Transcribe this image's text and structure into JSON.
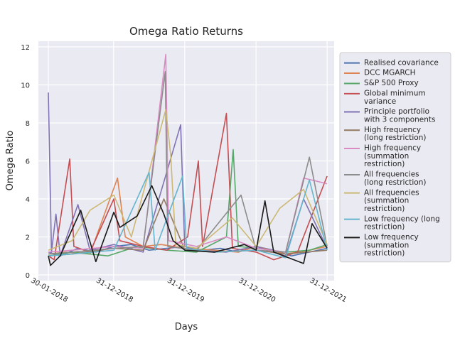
{
  "chart_data": {
    "type": "line",
    "title": "Omega Ratio Returns",
    "xlabel": "Days",
    "ylabel": "Omega Ratio",
    "x_tick_labels": [
      "30-01-2018",
      "31-12-2018",
      "31-12-2019",
      "31-12-2020",
      "31-12-2021"
    ],
    "x_tick_dates": [
      "2018-01-30",
      "2018-12-31",
      "2019-12-31",
      "2020-12-31",
      "2021-12-31"
    ],
    "xlim": [
      "2017-12-10",
      "2022-02-05"
    ],
    "ylim": [
      -0.3,
      12.3
    ],
    "y_ticks": [
      0,
      2,
      4,
      6,
      8,
      10,
      12
    ],
    "grid": true,
    "background": "#eaeaf2",
    "legend_position": "right, outside plot",
    "series": [
      {
        "name": "Realised covariance",
        "label_lines": [
          "Realised covariance"
        ],
        "color": "#4c72b0",
        "points": [
          [
            "2018-01-30",
            1.2
          ],
          [
            "2018-04-01",
            1.0
          ],
          [
            "2018-07-01",
            1.4
          ],
          [
            "2018-10-01",
            1.2
          ],
          [
            "2019-01-01",
            1.5
          ],
          [
            "2019-04-01",
            1.6
          ],
          [
            "2019-07-01",
            1.3
          ],
          [
            "2019-10-01",
            1.4
          ],
          [
            "2020-01-01",
            1.5
          ],
          [
            "2020-04-01",
            1.3
          ],
          [
            "2020-07-01",
            1.4
          ],
          [
            "2020-10-01",
            1.2
          ],
          [
            "2021-01-01",
            1.5
          ],
          [
            "2021-04-01",
            1.3
          ],
          [
            "2021-07-01",
            1.0
          ],
          [
            "2021-10-01",
            1.2
          ],
          [
            "2021-12-31",
            1.4
          ]
        ]
      },
      {
        "name": "DCC MGARCH",
        "label_lines": [
          "DCC MGARCH"
        ],
        "color": "#dd8452",
        "points": [
          [
            "2018-01-30",
            1.1
          ],
          [
            "2018-05-01",
            1.2
          ],
          [
            "2018-09-01",
            1.1
          ],
          [
            "2019-01-20",
            5.1
          ],
          [
            "2019-03-01",
            2.0
          ],
          [
            "2019-06-01",
            1.5
          ],
          [
            "2019-09-01",
            1.6
          ],
          [
            "2020-01-01",
            1.4
          ],
          [
            "2020-06-01",
            1.3
          ],
          [
            "2020-10-01",
            1.2
          ],
          [
            "2021-01-01",
            1.5
          ],
          [
            "2021-06-01",
            1.1
          ],
          [
            "2021-10-01",
            1.3
          ],
          [
            "2021-12-31",
            1.5
          ]
        ]
      },
      {
        "name": "S&P 500 Proxy",
        "label_lines": [
          "S&P 500 Proxy"
        ],
        "color": "#55a868",
        "points": [
          [
            "2018-01-30",
            1.0
          ],
          [
            "2018-06-01",
            1.2
          ],
          [
            "2018-12-01",
            1.0
          ],
          [
            "2019-05-01",
            1.5
          ],
          [
            "2019-10-01",
            1.3
          ],
          [
            "2020-03-01",
            1.2
          ],
          [
            "2020-08-01",
            2.0
          ],
          [
            "2020-09-05",
            6.6
          ],
          [
            "2020-10-01",
            1.5
          ],
          [
            "2021-01-01",
            1.4
          ],
          [
            "2021-06-01",
            1.2
          ],
          [
            "2021-10-01",
            1.3
          ],
          [
            "2021-12-31",
            1.6
          ]
        ]
      },
      {
        "name": "Global minimum variance",
        "label_lines": [
          "Global minimum",
          "variance"
        ],
        "color": "#c44e52",
        "points": [
          [
            "2018-01-30",
            1.0
          ],
          [
            "2018-03-01",
            0.8
          ],
          [
            "2018-05-20",
            6.1
          ],
          [
            "2018-06-10",
            1.5
          ],
          [
            "2018-09-01",
            1.2
          ],
          [
            "2019-01-01",
            4.0
          ],
          [
            "2019-02-01",
            1.8
          ],
          [
            "2019-06-01",
            1.5
          ],
          [
            "2019-10-01",
            1.3
          ],
          [
            "2020-01-15",
            2.0
          ],
          [
            "2020-03-10",
            6.0
          ],
          [
            "2020-04-01",
            1.5
          ],
          [
            "2020-08-01",
            8.5
          ],
          [
            "2020-09-01",
            1.4
          ],
          [
            "2021-01-01",
            1.2
          ],
          [
            "2021-04-01",
            0.8
          ],
          [
            "2021-08-01",
            1.2
          ],
          [
            "2021-12-31",
            5.2
          ]
        ]
      },
      {
        "name": "Principle portfolio with 3 components",
        "label_lines": [
          "Principle portfolio",
          "with 3 components"
        ],
        "color": "#8172b3",
        "points": [
          [
            "2018-01-30",
            9.6
          ],
          [
            "2018-02-15",
            1.2
          ],
          [
            "2018-03-10",
            3.2
          ],
          [
            "2018-04-01",
            1.0
          ],
          [
            "2018-07-01",
            3.7
          ],
          [
            "2018-09-01",
            1.3
          ],
          [
            "2019-01-01",
            1.6
          ],
          [
            "2019-06-01",
            1.2
          ],
          [
            "2019-12-10",
            7.9
          ],
          [
            "2019-12-31",
            1.5
          ],
          [
            "2020-03-01",
            1.3
          ],
          [
            "2020-08-01",
            1.2
          ],
          [
            "2021-01-01",
            1.5
          ],
          [
            "2021-06-01",
            1.0
          ],
          [
            "2021-09-01",
            4.0
          ],
          [
            "2021-12-31",
            1.4
          ]
        ]
      },
      {
        "name": "High frequency (long restriction)",
        "label_lines": [
          "High frequency",
          "(long restriction)"
        ],
        "color": "#937860",
        "points": [
          [
            "2018-01-30",
            1.0
          ],
          [
            "2018-06-01",
            1.1
          ],
          [
            "2019-01-01",
            1.4
          ],
          [
            "2019-06-01",
            1.3
          ],
          [
            "2019-09-15",
            4.0
          ],
          [
            "2020-01-01",
            1.3
          ],
          [
            "2020-06-01",
            1.2
          ],
          [
            "2021-01-01",
            1.3
          ],
          [
            "2021-06-01",
            1.1
          ],
          [
            "2021-12-31",
            1.3
          ]
        ]
      },
      {
        "name": "High frequency (summation restriction)",
        "label_lines": [
          "High frequency",
          "(summation",
          "restriction)"
        ],
        "color": "#da8bc3",
        "points": [
          [
            "2018-01-30",
            1.2
          ],
          [
            "2018-06-01",
            1.3
          ],
          [
            "2019-01-01",
            1.5
          ],
          [
            "2019-06-01",
            1.4
          ],
          [
            "2019-09-25",
            11.6
          ],
          [
            "2019-10-10",
            1.8
          ],
          [
            "2020-03-01",
            1.5
          ],
          [
            "2020-08-01",
            2.0
          ],
          [
            "2021-01-01",
            1.4
          ],
          [
            "2021-06-01",
            1.2
          ],
          [
            "2021-09-01",
            5.1
          ],
          [
            "2021-12-31",
            4.8
          ]
        ]
      },
      {
        "name": "All frequencies (long restriction)",
        "label_lines": [
          "All frequencies",
          "(long restriction)"
        ],
        "color": "#8c8c8c",
        "points": [
          [
            "2018-01-30",
            1.1
          ],
          [
            "2018-06-01",
            1.2
          ],
          [
            "2019-01-01",
            1.4
          ],
          [
            "2019-06-01",
            1.5
          ],
          [
            "2019-09-22",
            10.7
          ],
          [
            "2019-10-05",
            1.5
          ],
          [
            "2020-03-01",
            1.3
          ],
          [
            "2020-10-15",
            4.2
          ],
          [
            "2021-01-01",
            1.3
          ],
          [
            "2021-06-01",
            1.2
          ],
          [
            "2021-10-01",
            6.2
          ],
          [
            "2021-12-31",
            1.5
          ]
        ]
      },
      {
        "name": "All frequencies (summation restriction)",
        "label_lines": [
          "All frequencies",
          "(summation",
          "restriction)"
        ],
        "color": "#ccb974",
        "points": [
          [
            "2018-01-30",
            1.3
          ],
          [
            "2018-06-01",
            1.8
          ],
          [
            "2018-09-01",
            3.4
          ],
          [
            "2019-01-01",
            4.2
          ],
          [
            "2019-04-01",
            2.0
          ],
          [
            "2019-09-25",
            8.7
          ],
          [
            "2019-10-20",
            6.3
          ],
          [
            "2019-11-15",
            1.6
          ],
          [
            "2020-03-01",
            1.4
          ],
          [
            "2020-09-01",
            3.0
          ],
          [
            "2021-01-01",
            1.5
          ],
          [
            "2021-05-01",
            3.5
          ],
          [
            "2021-09-01",
            4.5
          ],
          [
            "2021-12-31",
            1.6
          ]
        ]
      },
      {
        "name": "Low frequency (long restriction)",
        "label_lines": [
          "Low frequency (long",
          "restriction)"
        ],
        "color": "#64b5cd",
        "points": [
          [
            "2018-01-30",
            1.0
          ],
          [
            "2018-06-01",
            1.1
          ],
          [
            "2019-01-01",
            1.3
          ],
          [
            "2019-07-01",
            5.4
          ],
          [
            "2019-08-01",
            1.3
          ],
          [
            "2019-12-20",
            5.2
          ],
          [
            "2020-01-10",
            1.4
          ],
          [
            "2020-06-01",
            1.2
          ],
          [
            "2021-01-01",
            1.3
          ],
          [
            "2021-06-01",
            0.9
          ],
          [
            "2021-10-01",
            5.0
          ],
          [
            "2021-12-31",
            1.3
          ]
        ]
      },
      {
        "name": "Low frequency (summation restriction)",
        "label_lines": [
          "Low frequency",
          "(summation",
          "restriction)"
        ],
        "color": "#1a1a1a",
        "points": [
          [
            "2018-01-30",
            1.0
          ],
          [
            "2018-02-10",
            0.5
          ],
          [
            "2018-04-01",
            1.0
          ],
          [
            "2018-07-15",
            3.4
          ],
          [
            "2018-10-01",
            0.7
          ],
          [
            "2019-01-01",
            3.3
          ],
          [
            "2019-02-01",
            2.5
          ],
          [
            "2019-05-01",
            3.1
          ],
          [
            "2019-07-15",
            4.7
          ],
          [
            "2019-09-15",
            3.2
          ],
          [
            "2019-11-01",
            1.8
          ],
          [
            "2020-01-01",
            1.3
          ],
          [
            "2020-06-01",
            1.2
          ],
          [
            "2020-11-01",
            1.6
          ],
          [
            "2021-01-01",
            1.3
          ],
          [
            "2021-02-15",
            3.9
          ],
          [
            "2021-04-01",
            1.2
          ],
          [
            "2021-09-01",
            0.6
          ],
          [
            "2021-10-15",
            2.7
          ],
          [
            "2021-12-31",
            1.4
          ]
        ]
      }
    ]
  }
}
